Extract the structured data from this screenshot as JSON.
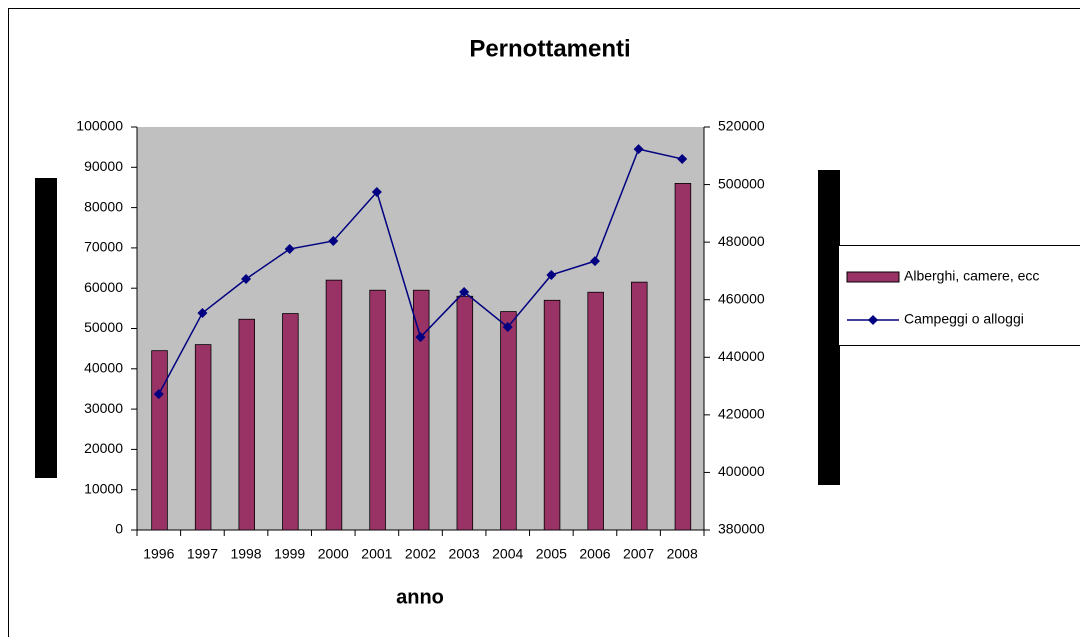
{
  "chart_data": {
    "type": "bar",
    "title": "Pernottamenti",
    "x_label": "anno",
    "categories": [
      "1996",
      "1997",
      "1998",
      "1999",
      "2000",
      "2001",
      "2002",
      "2003",
      "2004",
      "2005",
      "2006",
      "2007",
      "2008"
    ],
    "series": [
      {
        "name": "Alberghi, camere, ecc",
        "type": "bar",
        "color": "#993366",
        "values": [
          44500,
          46000,
          52300,
          53700,
          62000,
          59500,
          59500,
          58000,
          54200,
          57000,
          59000,
          61500,
          86000
        ]
      },
      {
        "name": "Campeggi o alloggi",
        "type": "line",
        "axis": "y2",
        "color": "#000080",
        "values": [
          427200,
          455400,
          467200,
          477600,
          480400,
          497400,
          447000,
          462700,
          450500,
          468600,
          473400,
          512300,
          508900
        ]
      }
    ],
    "ylim": [
      0,
      100000
    ],
    "yticks": [
      0,
      10000,
      20000,
      30000,
      40000,
      50000,
      60000,
      70000,
      80000,
      90000,
      100000
    ],
    "y2lim": [
      380000,
      520000
    ],
    "y2ticks": [
      380000,
      400000,
      420000,
      440000,
      460000,
      480000,
      500000,
      520000
    ],
    "grid": false,
    "legend": "right",
    "plot_background": "#c0c0c0"
  }
}
